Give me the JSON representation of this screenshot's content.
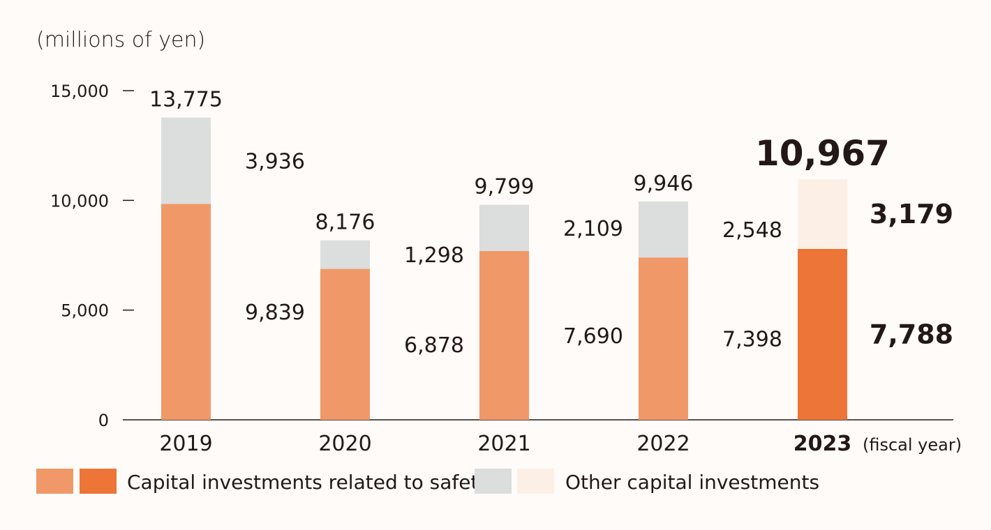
{
  "chart_data": {
    "type": "bar",
    "stacked": true,
    "unit_label": "(millions of yen)",
    "x_suffix": "(fiscal year)",
    "categories": [
      "2019",
      "2020",
      "2021",
      "2022",
      "2023"
    ],
    "highlight_category": "2023",
    "ylim": [
      0,
      15000
    ],
    "yticks": [
      0,
      5000,
      10000,
      15000
    ],
    "ytick_labels": [
      "0",
      "5,000",
      "10,000",
      "15,000"
    ],
    "series": [
      {
        "name": "Capital investments related to safety",
        "values": [
          9839,
          6878,
          7690,
          7398,
          7788
        ],
        "labels": [
          "9,839",
          "6,878",
          "7,690",
          "7,398",
          "7,788"
        ],
        "color": "#f09868",
        "highlight_color": "#ec7537"
      },
      {
        "name": "Other capital investments",
        "values": [
          3936,
          1298,
          2109,
          2548,
          3179
        ],
        "labels": [
          "3,936",
          "1,298",
          "2,109",
          "2,548",
          "3,179"
        ],
        "color": "#dcdddd",
        "highlight_color": "#fcf0e6"
      }
    ],
    "totals": [
      13775,
      8176,
      9799,
      9946,
      10967
    ],
    "total_labels": [
      "13,775",
      "8,176",
      "9,799",
      "9,946",
      "10,967"
    ],
    "legend_position": "bottom-left",
    "grid": false
  }
}
